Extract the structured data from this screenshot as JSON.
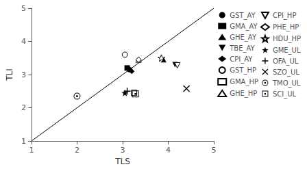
{
  "chart_data": {
    "type": "scatter",
    "title": "",
    "xlabel": "TLS",
    "ylabel": "TLI",
    "xlim": [
      1,
      5
    ],
    "ylim": [
      1,
      5
    ],
    "xticks": [
      1,
      2,
      3,
      4,
      5
    ],
    "yticks": [
      1,
      2,
      3,
      4,
      5
    ],
    "grid": false,
    "legend": "right",
    "diagonal": {
      "x": [
        1,
        5
      ],
      "y": [
        1,
        5
      ]
    },
    "series": [
      {
        "name": "GST_AY",
        "marker": "circle",
        "color": "black",
        "x": [
          3.15
        ],
        "y": [
          3.15
        ]
      },
      {
        "name": "GMA_AY",
        "marker": "square",
        "color": "black",
        "x": [
          3.1
        ],
        "y": [
          3.2
        ]
      },
      {
        "name": "GHE_AY",
        "marker": "triangle-up",
        "color": "black",
        "x": [
          3.9
        ],
        "y": [
          3.45
        ]
      },
      {
        "name": "TBE_AY",
        "marker": "triangle-down",
        "color": "black",
        "x": [
          4.15
        ],
        "y": [
          3.3
        ]
      },
      {
        "name": "CPI_AY",
        "marker": "diamond",
        "color": "black",
        "x": [
          3.2
        ],
        "y": [
          3.1
        ]
      },
      {
        "name": "GST_HP",
        "marker": "circle-open",
        "color": "black",
        "x": [
          3.05
        ],
        "y": [
          3.6
        ]
      },
      {
        "name": "GMA_HP",
        "marker": "square-open",
        "color": "black",
        "x": [
          3.25
        ],
        "y": [
          2.45
        ]
      },
      {
        "name": "GHE_HP",
        "marker": "triangle-up-open",
        "color": "black",
        "x": [
          3.35
        ],
        "y": [
          3.45
        ]
      },
      {
        "name": "CPI_HP",
        "marker": "triangle-down-open",
        "color": "black",
        "x": [
          4.2
        ],
        "y": [
          3.28
        ]
      },
      {
        "name": "PHE_HP",
        "marker": "diamond-open",
        "color": "black",
        "x": [
          3.35
        ],
        "y": [
          3.45
        ]
      },
      {
        "name": "HDU_HP",
        "marker": "star-open",
        "color": "black",
        "x": [
          3.85
        ],
        "y": [
          3.5
        ]
      },
      {
        "name": "GME_UL",
        "marker": "star",
        "color": "black",
        "x": [
          3.05
        ],
        "y": [
          2.45
        ]
      },
      {
        "name": "OFA_UL",
        "marker": "plus",
        "color": "black",
        "x": [
          3.1
        ],
        "y": [
          2.5
        ]
      },
      {
        "name": "SZO_UL",
        "marker": "x",
        "color": "black",
        "x": [
          4.4
        ],
        "y": [
          2.58
        ]
      },
      {
        "name": "TMO_UL",
        "marker": "circle-dot",
        "color": "black",
        "x": [
          2.0
        ],
        "y": [
          2.35
        ]
      },
      {
        "name": "SCI_UL",
        "marker": "square-dot",
        "color": "black",
        "x": [
          3.28
        ],
        "y": [
          2.42
        ]
      }
    ]
  }
}
